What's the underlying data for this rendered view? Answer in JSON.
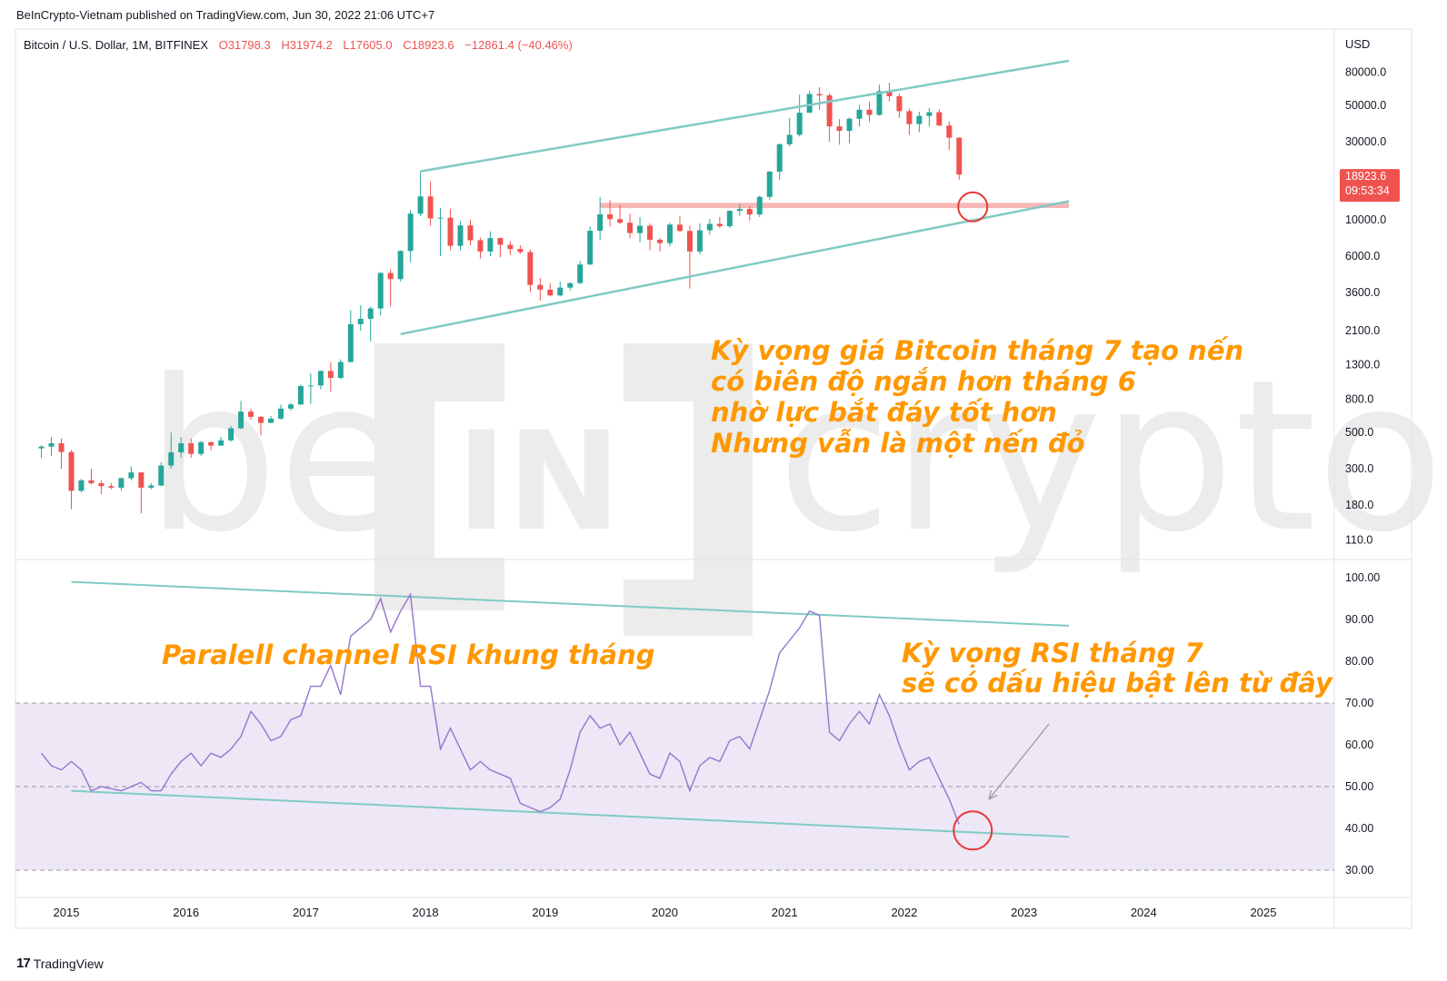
{
  "header": {
    "published_by": "BeInCrypto-Vietnam published on TradingView.com, Jun 30, 2022 21:06 UTC+7"
  },
  "footer": {
    "logo_glyph": "17",
    "brand": "TradingView"
  },
  "watermark": {
    "left": "be",
    "mid": "IN",
    "right": "crypto"
  },
  "colors": {
    "up": "#26a69a",
    "down": "#ef5350",
    "channel": "#80cbc4",
    "rsi_line": "#9575cd",
    "rsi_band": "#ede7f6",
    "annotation": "#ff9800",
    "highlight": "#f7b6b6",
    "circle": "#e53935",
    "price_tag": "#ef5350"
  },
  "chart_data": [
    {
      "type": "candlestick",
      "symbol_line": {
        "name": "Bitcoin / U.S. Dollar, 1M, BITFINEX",
        "o": "O31798.3",
        "h": "H31974.2",
        "l": "L17605.0",
        "c": "C18923.6",
        "chg": "−12861.4 (−40.46%)"
      },
      "y_axis_title": "USD",
      "y_scale": "log",
      "y_ticks": [
        "80000.0",
        "50000.0",
        "30000.0",
        "10000.0",
        "6000.0",
        "3600.0",
        "2100.0",
        "1300.0",
        "800.0",
        "500.0",
        "300.0",
        "180.0",
        "110.0"
      ],
      "x_ticks": [
        "2015",
        "2016",
        "2017",
        "2018",
        "2019",
        "2020",
        "2021",
        "2022",
        "2023",
        "2024",
        "2025"
      ],
      "last_price": "18923.6",
      "countdown": "09:53:34",
      "candles": [
        {
          "d": "2014-10",
          "o": 400,
          "h": 420,
          "l": 350,
          "c": 410
        },
        {
          "d": "2014-11",
          "o": 410,
          "h": 470,
          "l": 360,
          "c": 430
        },
        {
          "d": "2014-12",
          "o": 430,
          "h": 460,
          "l": 300,
          "c": 380
        },
        {
          "d": "2015-01",
          "o": 380,
          "h": 390,
          "l": 170,
          "c": 220
        },
        {
          "d": "2015-02",
          "o": 220,
          "h": 260,
          "l": 215,
          "c": 255
        },
        {
          "d": "2015-03",
          "o": 255,
          "h": 300,
          "l": 240,
          "c": 245
        },
        {
          "d": "2015-04",
          "o": 245,
          "h": 255,
          "l": 210,
          "c": 235
        },
        {
          "d": "2015-05",
          "o": 235,
          "h": 245,
          "l": 225,
          "c": 230
        },
        {
          "d": "2015-06",
          "o": 230,
          "h": 265,
          "l": 220,
          "c": 263
        },
        {
          "d": "2015-07",
          "o": 263,
          "h": 310,
          "l": 255,
          "c": 285
        },
        {
          "d": "2015-08",
          "o": 285,
          "h": 285,
          "l": 160,
          "c": 230
        },
        {
          "d": "2015-09",
          "o": 230,
          "h": 245,
          "l": 225,
          "c": 237
        },
        {
          "d": "2015-10",
          "o": 237,
          "h": 330,
          "l": 235,
          "c": 314
        },
        {
          "d": "2015-11",
          "o": 314,
          "h": 500,
          "l": 300,
          "c": 378
        },
        {
          "d": "2015-12",
          "o": 378,
          "h": 470,
          "l": 350,
          "c": 430
        },
        {
          "d": "2016-01",
          "o": 430,
          "h": 460,
          "l": 350,
          "c": 370
        },
        {
          "d": "2016-02",
          "o": 370,
          "h": 445,
          "l": 360,
          "c": 437
        },
        {
          "d": "2016-03",
          "o": 437,
          "h": 440,
          "l": 390,
          "c": 416
        },
        {
          "d": "2016-04",
          "o": 416,
          "h": 470,
          "l": 415,
          "c": 448
        },
        {
          "d": "2016-05",
          "o": 448,
          "h": 550,
          "l": 440,
          "c": 531
        },
        {
          "d": "2016-06",
          "o": 531,
          "h": 780,
          "l": 525,
          "c": 671
        },
        {
          "d": "2016-07",
          "o": 671,
          "h": 700,
          "l": 600,
          "c": 624
        },
        {
          "d": "2016-08",
          "o": 624,
          "h": 630,
          "l": 480,
          "c": 573
        },
        {
          "d": "2016-09",
          "o": 573,
          "h": 630,
          "l": 570,
          "c": 608
        },
        {
          "d": "2016-10",
          "o": 608,
          "h": 740,
          "l": 600,
          "c": 700
        },
        {
          "d": "2016-11",
          "o": 700,
          "h": 760,
          "l": 680,
          "c": 742
        },
        {
          "d": "2016-12",
          "o": 742,
          "h": 980,
          "l": 740,
          "c": 963
        },
        {
          "d": "2017-01",
          "o": 963,
          "h": 1150,
          "l": 750,
          "c": 970
        },
        {
          "d": "2017-02",
          "o": 970,
          "h": 1200,
          "l": 920,
          "c": 1190
        },
        {
          "d": "2017-03",
          "o": 1190,
          "h": 1350,
          "l": 890,
          "c": 1080
        },
        {
          "d": "2017-04",
          "o": 1080,
          "h": 1400,
          "l": 1060,
          "c": 1350
        },
        {
          "d": "2017-05",
          "o": 1350,
          "h": 2800,
          "l": 1340,
          "c": 2300
        },
        {
          "d": "2017-06",
          "o": 2300,
          "h": 3000,
          "l": 2100,
          "c": 2480
        },
        {
          "d": "2017-07",
          "o": 2480,
          "h": 2950,
          "l": 1800,
          "c": 2870
        },
        {
          "d": "2017-08",
          "o": 2870,
          "h": 4800,
          "l": 2600,
          "c": 4730
        },
        {
          "d": "2017-09",
          "o": 4730,
          "h": 4980,
          "l": 2950,
          "c": 4340
        },
        {
          "d": "2017-10",
          "o": 4340,
          "h": 6500,
          "l": 4200,
          "c": 6450
        },
        {
          "d": "2017-11",
          "o": 6450,
          "h": 11500,
          "l": 5500,
          "c": 10900
        },
        {
          "d": "2017-12",
          "o": 10900,
          "h": 19800,
          "l": 10500,
          "c": 13900
        },
        {
          "d": "2018-01",
          "o": 13900,
          "h": 17200,
          "l": 9200,
          "c": 10200
        },
        {
          "d": "2018-02",
          "o": 10200,
          "h": 11800,
          "l": 6000,
          "c": 10300
        },
        {
          "d": "2018-03",
          "o": 10300,
          "h": 11700,
          "l": 6500,
          "c": 6930
        },
        {
          "d": "2018-04",
          "o": 6930,
          "h": 9800,
          "l": 6500,
          "c": 9240
        },
        {
          "d": "2018-05",
          "o": 9240,
          "h": 10000,
          "l": 7000,
          "c": 7500
        },
        {
          "d": "2018-06",
          "o": 7500,
          "h": 7800,
          "l": 5800,
          "c": 6400
        },
        {
          "d": "2018-07",
          "o": 6400,
          "h": 8500,
          "l": 6000,
          "c": 7730
        },
        {
          "d": "2018-08",
          "o": 7730,
          "h": 7800,
          "l": 5900,
          "c": 7030
        },
        {
          "d": "2018-09",
          "o": 7030,
          "h": 7400,
          "l": 6100,
          "c": 6630
        },
        {
          "d": "2018-10",
          "o": 6630,
          "h": 7000,
          "l": 6200,
          "c": 6350
        },
        {
          "d": "2018-11",
          "o": 6350,
          "h": 6600,
          "l": 3600,
          "c": 4000
        },
        {
          "d": "2018-12",
          "o": 4000,
          "h": 4400,
          "l": 3200,
          "c": 3740
        },
        {
          "d": "2019-01",
          "o": 3740,
          "h": 4100,
          "l": 3400,
          "c": 3450
        },
        {
          "d": "2019-02",
          "o": 3450,
          "h": 4200,
          "l": 3400,
          "c": 3850
        },
        {
          "d": "2019-03",
          "o": 3850,
          "h": 4150,
          "l": 3700,
          "c": 4100
        },
        {
          "d": "2019-04",
          "o": 4100,
          "h": 5600,
          "l": 4050,
          "c": 5330
        },
        {
          "d": "2019-05",
          "o": 5330,
          "h": 9100,
          "l": 5300,
          "c": 8570
        },
        {
          "d": "2019-06",
          "o": 8570,
          "h": 13800,
          "l": 7500,
          "c": 10800
        },
        {
          "d": "2019-07",
          "o": 10800,
          "h": 13200,
          "l": 9100,
          "c": 10100
        },
        {
          "d": "2019-08",
          "o": 10100,
          "h": 12300,
          "l": 9400,
          "c": 9600
        },
        {
          "d": "2019-09",
          "o": 9600,
          "h": 10900,
          "l": 7700,
          "c": 8300
        },
        {
          "d": "2019-10",
          "o": 8300,
          "h": 10400,
          "l": 7300,
          "c": 9200
        },
        {
          "d": "2019-11",
          "o": 9200,
          "h": 9500,
          "l": 6500,
          "c": 7550
        },
        {
          "d": "2019-12",
          "o": 7550,
          "h": 7750,
          "l": 6400,
          "c": 7200
        },
        {
          "d": "2020-01",
          "o": 7200,
          "h": 9600,
          "l": 6900,
          "c": 9350
        },
        {
          "d": "2020-02",
          "o": 9350,
          "h": 10500,
          "l": 8400,
          "c": 8550
        },
        {
          "d": "2020-03",
          "o": 8550,
          "h": 9200,
          "l": 3800,
          "c": 6400
        },
        {
          "d": "2020-04",
          "o": 6400,
          "h": 9500,
          "l": 6150,
          "c": 8630
        },
        {
          "d": "2020-05",
          "o": 8630,
          "h": 10100,
          "l": 8100,
          "c": 9450
        },
        {
          "d": "2020-06",
          "o": 9450,
          "h": 10400,
          "l": 8900,
          "c": 9140
        },
        {
          "d": "2020-07",
          "o": 9140,
          "h": 11400,
          "l": 8900,
          "c": 11350
        },
        {
          "d": "2020-08",
          "o": 11350,
          "h": 12500,
          "l": 10600,
          "c": 11650
        },
        {
          "d": "2020-09",
          "o": 11650,
          "h": 12100,
          "l": 9900,
          "c": 10780
        },
        {
          "d": "2020-10",
          "o": 10780,
          "h": 14100,
          "l": 10400,
          "c": 13800
        },
        {
          "d": "2020-11",
          "o": 13800,
          "h": 19900,
          "l": 13200,
          "c": 19700
        },
        {
          "d": "2020-12",
          "o": 19700,
          "h": 29300,
          "l": 17600,
          "c": 28990
        },
        {
          "d": "2021-01",
          "o": 28990,
          "h": 41900,
          "l": 28100,
          "c": 33100
        },
        {
          "d": "2021-02",
          "o": 33100,
          "h": 58300,
          "l": 32300,
          "c": 45200
        },
        {
          "d": "2021-03",
          "o": 45200,
          "h": 61700,
          "l": 45000,
          "c": 58800
        },
        {
          "d": "2021-04",
          "o": 58800,
          "h": 64800,
          "l": 47000,
          "c": 57700
        },
        {
          "d": "2021-05",
          "o": 57700,
          "h": 59500,
          "l": 30000,
          "c": 37300
        },
        {
          "d": "2021-06",
          "o": 37300,
          "h": 41300,
          "l": 28800,
          "c": 35000
        },
        {
          "d": "2021-07",
          "o": 35000,
          "h": 42300,
          "l": 29300,
          "c": 41500
        },
        {
          "d": "2021-08",
          "o": 41500,
          "h": 50500,
          "l": 37300,
          "c": 47100
        },
        {
          "d": "2021-09",
          "o": 47100,
          "h": 52900,
          "l": 39600,
          "c": 43800
        },
        {
          "d": "2021-10",
          "o": 43800,
          "h": 67000,
          "l": 43300,
          "c": 61300
        },
        {
          "d": "2021-11",
          "o": 61300,
          "h": 69000,
          "l": 53000,
          "c": 57000
        },
        {
          "d": "2021-12",
          "o": 57000,
          "h": 59100,
          "l": 42000,
          "c": 46200
        },
        {
          "d": "2022-01",
          "o": 46200,
          "h": 48000,
          "l": 33000,
          "c": 38500
        },
        {
          "d": "2022-02",
          "o": 38500,
          "h": 45800,
          "l": 34300,
          "c": 43200
        },
        {
          "d": "2022-03",
          "o": 43200,
          "h": 48200,
          "l": 37200,
          "c": 45500
        },
        {
          "d": "2022-04",
          "o": 45500,
          "h": 47400,
          "l": 37600,
          "c": 37700
        },
        {
          "d": "2022-05",
          "o": 37700,
          "h": 40000,
          "l": 26700,
          "c": 31800
        },
        {
          "d": "2022-06",
          "o": 31798.3,
          "h": 31974.2,
          "l": 17605.0,
          "c": 18923.6
        }
      ],
      "trendlines": [
        {
          "name": "upper-channel",
          "from": {
            "d": "2017-12",
            "v": 19800
          },
          "to": {
            "d": "2023-05",
            "v": 94000
          }
        },
        {
          "name": "lower-channel",
          "from": {
            "d": "2017-10",
            "v": 2000
          },
          "to": {
            "d": "2023-05",
            "v": 13000
          }
        }
      ],
      "support_band": {
        "from": "2019-06",
        "to": "2023-05",
        "low": 11800,
        "high": 12700
      },
      "circle": {
        "d": "2022-07",
        "v": 12000
      },
      "annotation": [
        "Kỳ vọng giá Bitcoin tháng 7 tạo nến",
        "có biên độ ngắn hơn tháng 6",
        "nhờ lực bắt đáy tốt hơn",
        "Nhưng vẫn là một nến đỏ"
      ]
    },
    {
      "type": "line",
      "y_ticks": [
        "100.00",
        "90.00",
        "80.00",
        "70.00",
        "60.00",
        "50.00",
        "40.00",
        "30.00"
      ],
      "ylim": [
        28,
        104
      ],
      "levels": {
        "upper": 70,
        "middle": 50,
        "lower": 30
      },
      "rsi": [
        58,
        55,
        54,
        56,
        54,
        49,
        50,
        49.5,
        49,
        50,
        51,
        49,
        49,
        53,
        56,
        58,
        55,
        58,
        57,
        59,
        62,
        68,
        65,
        61,
        62,
        66,
        67,
        74,
        74,
        79,
        72,
        86,
        88,
        90,
        95,
        87,
        92,
        96,
        74,
        74,
        59,
        64,
        59,
        54,
        56,
        54,
        53,
        52,
        46,
        45,
        44,
        45,
        47,
        54,
        63,
        67,
        64,
        65,
        60,
        63,
        58,
        53,
        52,
        58,
        56,
        49,
        55,
        57,
        56,
        61,
        62,
        59,
        66,
        73,
        82,
        85,
        88,
        92,
        91,
        63,
        61,
        65,
        68,
        65,
        72,
        67,
        60,
        54,
        56,
        57,
        52,
        47,
        41
      ],
      "trendlines": [
        {
          "name": "rsi-upper-channel",
          "from": {
            "d": "2015-01",
            "v": 99
          },
          "to": {
            "d": "2023-05",
            "v": 88.5
          }
        },
        {
          "name": "rsi-lower-channel",
          "from": {
            "d": "2015-01",
            "v": 49
          },
          "to": {
            "d": "2023-05",
            "v": 38
          }
        }
      ],
      "arrow": {
        "from": {
          "d": "2023-03",
          "v": 65
        },
        "to": {
          "d": "2022-09",
          "v": 47
        }
      },
      "circle": {
        "d": "2022-07",
        "v": 39.5
      },
      "annotation_left": "Paralell channel RSI khung tháng",
      "annotation_right": [
        "Kỳ vọng RSI tháng 7",
        "sẽ có dấu hiệu bật lên từ đây"
      ]
    }
  ]
}
